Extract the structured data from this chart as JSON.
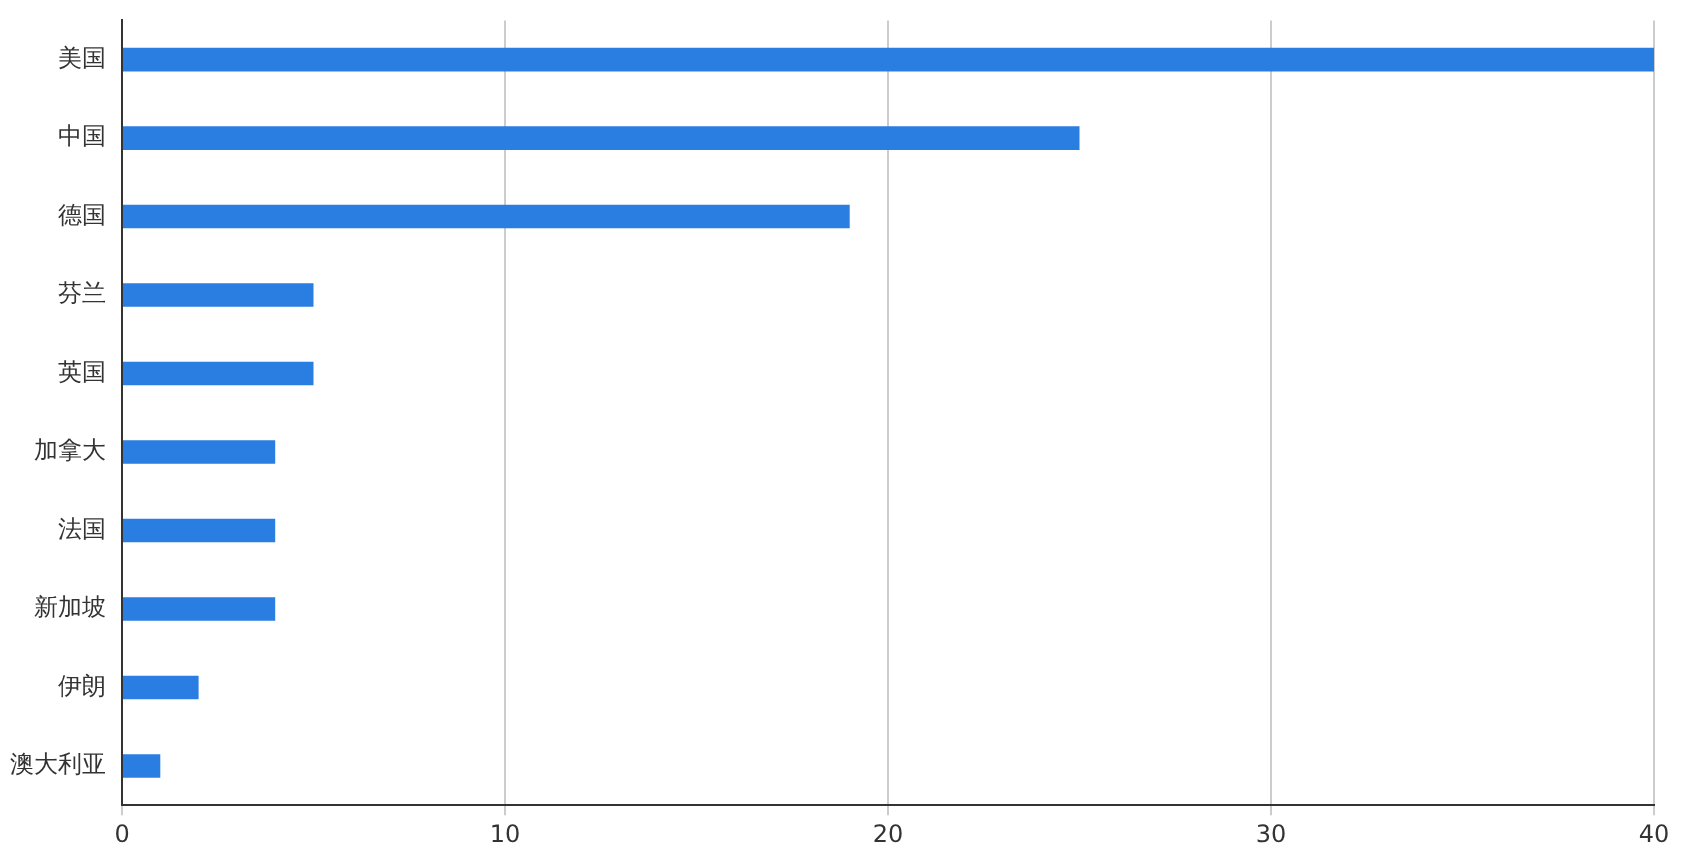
{
  "chart_data": {
    "type": "bar",
    "orientation": "horizontal",
    "categories": [
      "美国",
      "中国",
      "德国",
      "芬兰",
      "英国",
      "加拿大",
      "法国",
      "新加坡",
      "伊朗",
      "澳大利亚"
    ],
    "values": [
      40,
      25,
      19,
      5,
      5,
      4,
      4,
      4,
      2,
      1
    ],
    "color": "#2a7de1",
    "xlim": [
      0,
      40
    ],
    "xticks": [
      0,
      10,
      20,
      30,
      40
    ],
    "grid": "x"
  }
}
